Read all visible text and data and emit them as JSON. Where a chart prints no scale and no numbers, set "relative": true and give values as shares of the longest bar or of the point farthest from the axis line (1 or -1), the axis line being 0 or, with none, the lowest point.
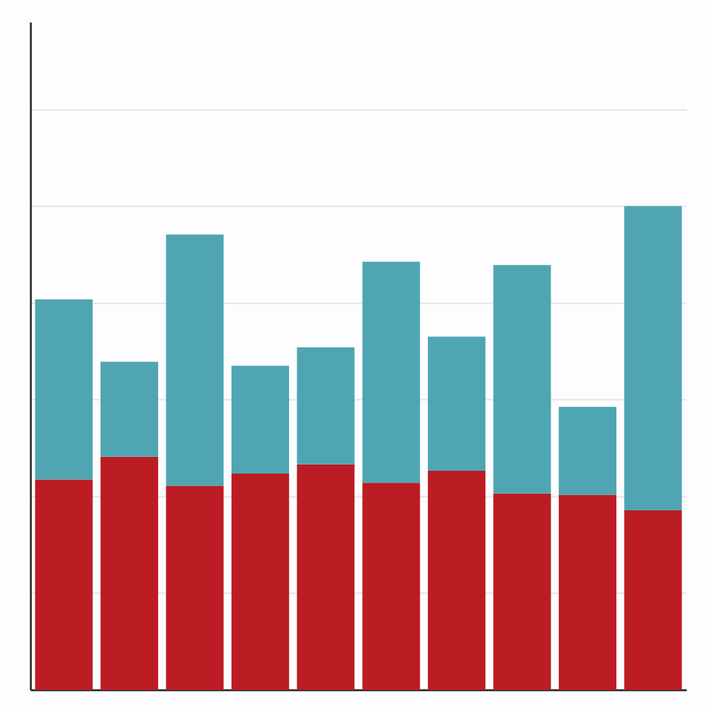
{
  "chart_data": {
    "type": "bar",
    "stacked": true,
    "relative": true,
    "categories": [
      null,
      null,
      null,
      null,
      null,
      null,
      null,
      null,
      null,
      null
    ],
    "series": [
      {
        "color": "#bc1c24",
        "values": [
          0.435,
          0.482,
          0.422,
          0.447,
          0.466,
          0.428,
          0.453,
          0.406,
          0.403,
          0.371
        ]
      },
      {
        "color": "#4fa6b2",
        "values": [
          0.372,
          0.196,
          0.519,
          0.223,
          0.242,
          0.457,
          0.277,
          0.472,
          0.182,
          0.629
        ]
      }
    ],
    "grid": "y",
    "legend": false
  }
}
